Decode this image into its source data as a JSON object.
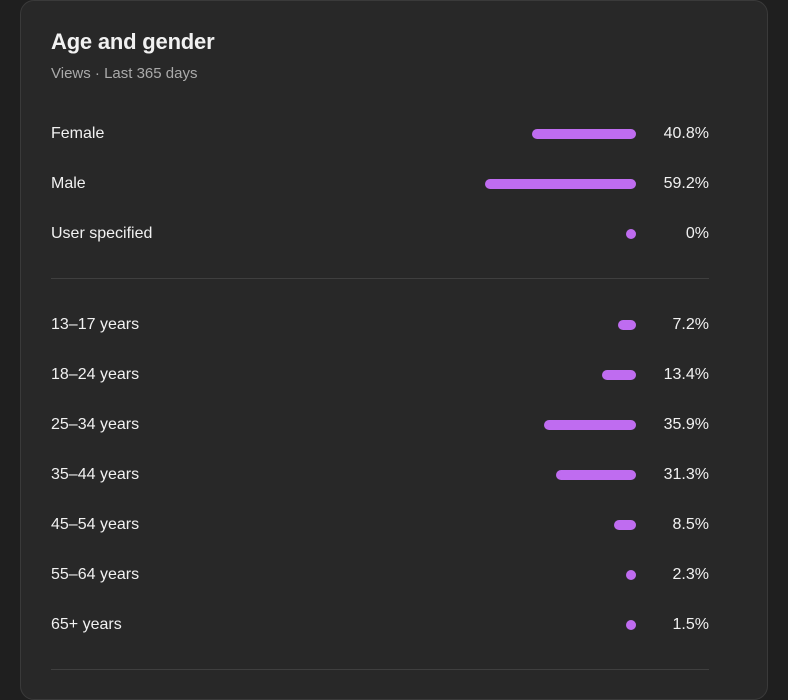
{
  "card": {
    "title": "Age and gender",
    "subtitle": "Views · Last 365 days"
  },
  "gender": [
    {
      "label": "Female",
      "value": "40.8%",
      "pct": 40.8
    },
    {
      "label": "Male",
      "value": "59.2%",
      "pct": 59.2
    },
    {
      "label": "User specified",
      "value": "0%",
      "pct": 0
    }
  ],
  "age": [
    {
      "label": "13–17 years",
      "value": "7.2%",
      "pct": 7.2
    },
    {
      "label": "18–24 years",
      "value": "13.4%",
      "pct": 13.4
    },
    {
      "label": "25–34 years",
      "value": "35.9%",
      "pct": 35.9
    },
    {
      "label": "35–44 years",
      "value": "31.3%",
      "pct": 31.3
    },
    {
      "label": "45–54 years",
      "value": "8.5%",
      "pct": 8.5
    },
    {
      "label": "55–64 years",
      "value": "2.3%",
      "pct": 2.3
    },
    {
      "label": "65+ years",
      "value": "1.5%",
      "pct": 1.5
    }
  ],
  "colors": {
    "bar": "#bf6cf0",
    "background": "#282828",
    "text": "#f1f1f1",
    "muted": "#aaaaaa"
  }
}
